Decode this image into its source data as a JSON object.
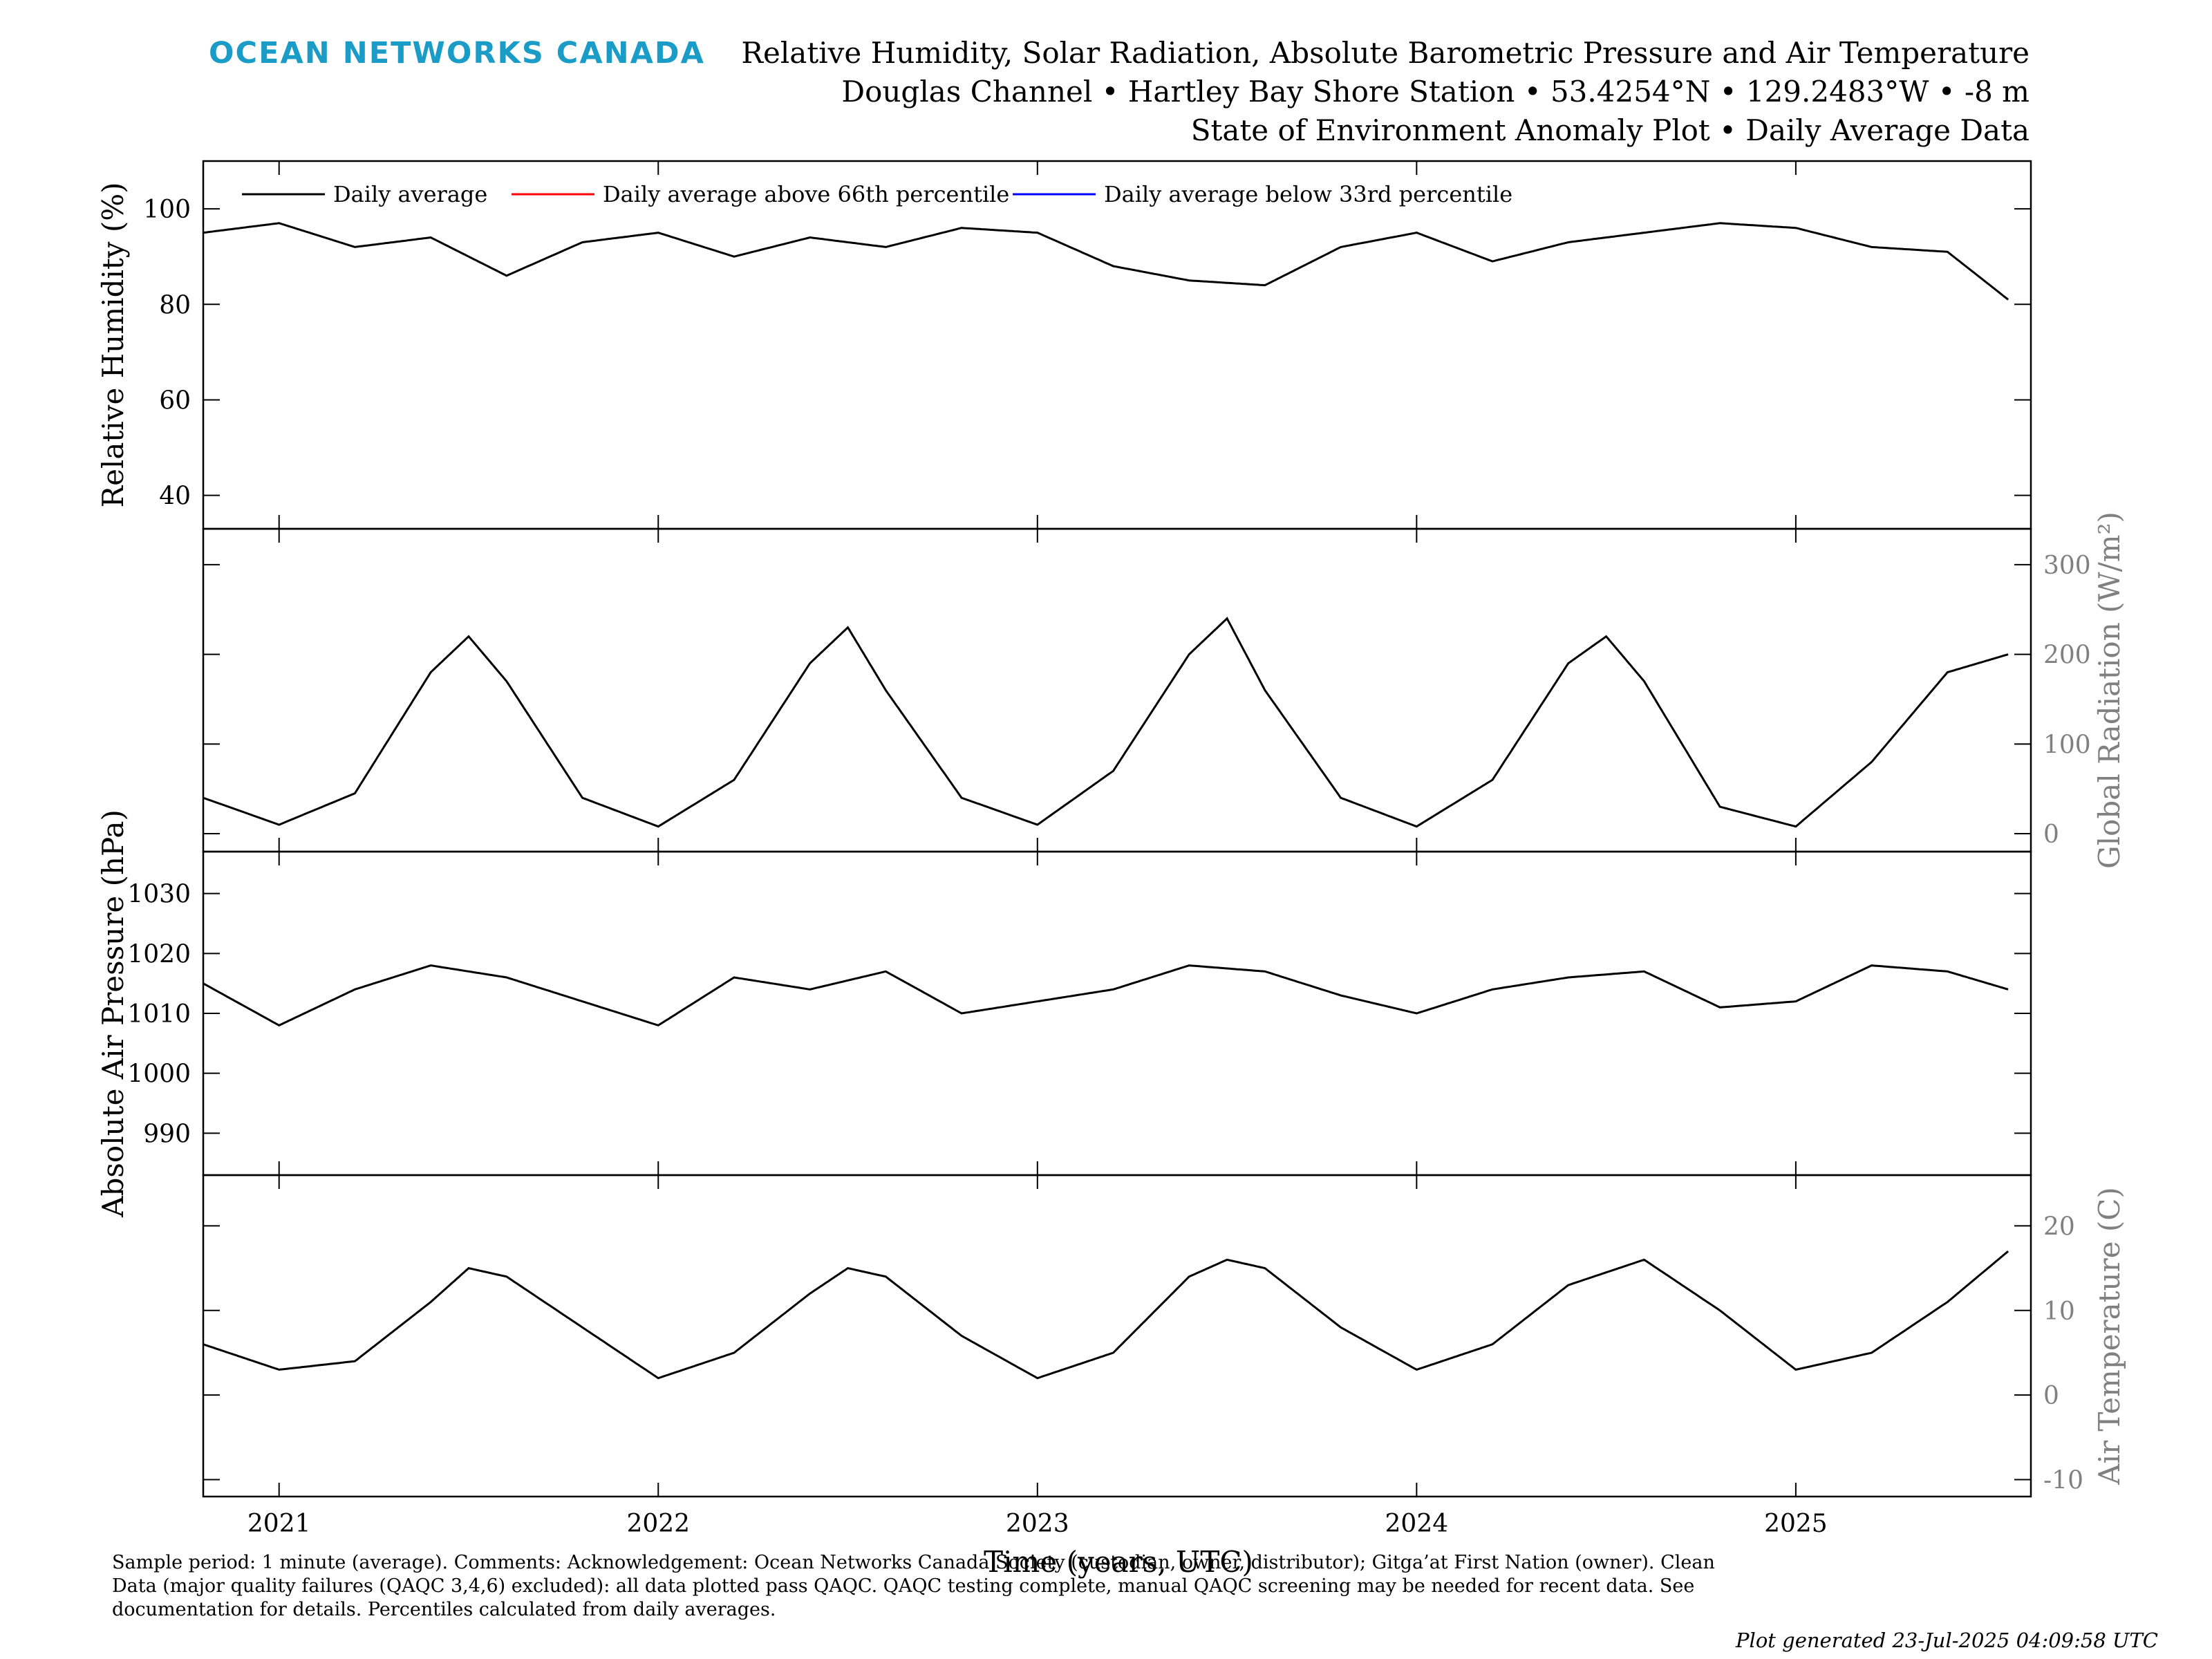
{
  "header": {
    "brand": "OCEAN NETWORKS CANADA",
    "title_line1": "Relative Humidity, Solar Radiation, Absolute Barometric Pressure and Air Temperature",
    "title_line2": "Douglas Channel • Hartley Bay Shore Station • 53.4254°N • 129.2483°W • -8 m",
    "title_line3": "State of Environment Anomaly Plot • Daily Average Data"
  },
  "legend": {
    "daily": "Daily average",
    "above": "Daily average above 66th percentile",
    "below": "Daily average below 33rd percentile"
  },
  "colors": {
    "daily": "#000000",
    "above": "#ff0000",
    "below": "#0000ff",
    "brand": "#1a9cc7",
    "right_axis": "#808080"
  },
  "footer": {
    "note": "Sample period: 1 minute (average). Comments: Acknowledgement: Ocean Networks Canada Society (custodian, owner, distributor); Gitga’at First Nation (owner). Clean Data (major quality failures (QAQC 3,4,6) excluded): all data plotted pass QAQC. QAQC testing complete, manual QAQC screening may be needed for recent data. See documentation for details. Percentiles calculated from daily averages.",
    "generated": "Plot generated 23-Jul-2025 04:09:58 UTC"
  },
  "chart_data": [
    {
      "type": "line",
      "title": "Relative Humidity",
      "ylabel": "Relative Humidity (%)",
      "yaxis_side": "left",
      "ylim": [
        33,
        110
      ],
      "yticks": [
        40,
        60,
        80,
        100
      ],
      "x": [
        2020.8,
        2021.0,
        2021.2,
        2021.4,
        2021.6,
        2021.8,
        2022.0,
        2022.2,
        2022.4,
        2022.6,
        2022.8,
        2023.0,
        2023.2,
        2023.4,
        2023.6,
        2023.8,
        2024.0,
        2024.2,
        2024.4,
        2024.6,
        2024.8,
        2025.0,
        2025.2,
        2025.4,
        2025.56
      ],
      "y": [
        95,
        97,
        92,
        94,
        86,
        93,
        95,
        90,
        94,
        92,
        96,
        95,
        88,
        85,
        84,
        92,
        95,
        89,
        93,
        95,
        97,
        96,
        92,
        91,
        81
      ],
      "series": [
        {
          "name": "Daily average",
          "color": "#000000"
        },
        {
          "name": "Daily average above 66th percentile",
          "color": "#ff0000"
        },
        {
          "name": "Daily average below 33rd percentile",
          "color": "#0000ff"
        }
      ]
    },
    {
      "type": "line",
      "title": "Global Radiation",
      "ylabel": "Global Radiation (W/m²)",
      "yaxis_side": "right",
      "ylim": [
        -20,
        340
      ],
      "yticks": [
        0,
        100,
        200,
        300
      ],
      "x": [
        2020.8,
        2021.0,
        2021.2,
        2021.4,
        2021.5,
        2021.6,
        2021.8,
        2022.0,
        2022.2,
        2022.4,
        2022.5,
        2022.6,
        2022.8,
        2023.0,
        2023.2,
        2023.4,
        2023.5,
        2023.6,
        2023.8,
        2024.0,
        2024.2,
        2024.4,
        2024.5,
        2024.6,
        2024.8,
        2025.0,
        2025.2,
        2025.4,
        2025.56
      ],
      "y": [
        40,
        10,
        45,
        180,
        220,
        170,
        40,
        8,
        60,
        190,
        230,
        160,
        40,
        10,
        70,
        200,
        240,
        160,
        40,
        8,
        60,
        190,
        220,
        170,
        30,
        8,
        80,
        180,
        200
      ]
    },
    {
      "type": "line",
      "title": "Absolute Air Pressure",
      "ylabel": "Absolute Air Pressure (hPa)",
      "yaxis_side": "left",
      "ylim": [
        983,
        1037
      ],
      "yticks": [
        990,
        1000,
        1010,
        1020,
        1030
      ],
      "x": [
        2020.8,
        2021.0,
        2021.2,
        2021.4,
        2021.6,
        2021.8,
        2022.0,
        2022.2,
        2022.4,
        2022.6,
        2022.8,
        2023.0,
        2023.2,
        2023.4,
        2023.6,
        2023.8,
        2024.0,
        2024.2,
        2024.4,
        2024.6,
        2024.8,
        2025.0,
        2025.2,
        2025.4,
        2025.56
      ],
      "y": [
        1015,
        1008,
        1014,
        1018,
        1016,
        1012,
        1008,
        1016,
        1014,
        1017,
        1010,
        1012,
        1014,
        1018,
        1017,
        1013,
        1010,
        1014,
        1016,
        1017,
        1011,
        1012,
        1018,
        1017,
        1014
      ]
    },
    {
      "type": "line",
      "title": "Air Temperature",
      "ylabel": "Air Temperature (C)",
      "yaxis_side": "right",
      "ylim": [
        -12,
        26
      ],
      "yticks": [
        -10,
        0,
        10,
        20
      ],
      "x": [
        2020.8,
        2021.0,
        2021.2,
        2021.4,
        2021.5,
        2021.6,
        2021.8,
        2022.0,
        2022.2,
        2022.4,
        2022.5,
        2022.6,
        2022.8,
        2023.0,
        2023.2,
        2023.4,
        2023.5,
        2023.6,
        2023.8,
        2024.0,
        2024.2,
        2024.4,
        2024.6,
        2024.8,
        2025.0,
        2025.2,
        2025.4,
        2025.56
      ],
      "y": [
        6,
        3,
        4,
        11,
        15,
        14,
        8,
        2,
        5,
        12,
        15,
        14,
        7,
        2,
        5,
        14,
        16,
        15,
        8,
        3,
        6,
        13,
        16,
        10,
        3,
        5,
        11,
        17
      ]
    }
  ],
  "xaxis": {
    "label": "Time (years, UTC)",
    "xlim": [
      2020.8,
      2025.62
    ],
    "ticks": [
      2021,
      2022,
      2023,
      2024,
      2025
    ],
    "tick_labels": [
      "2021",
      "2022",
      "2023",
      "2024",
      "2025"
    ]
  }
}
